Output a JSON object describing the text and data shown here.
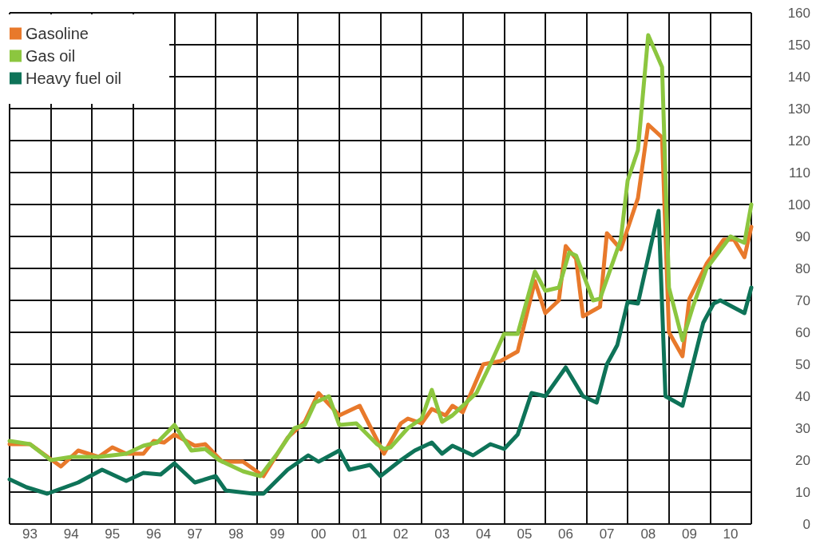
{
  "chart_data": {
    "type": "line",
    "marker": "none",
    "line_style": "solid",
    "grid": true,
    "legend": "top left",
    "xlim": [
      "1993-01",
      "2011-01"
    ],
    "xticks": [
      {
        "value": "1993-01",
        "label": null
      },
      {
        "value": "1993-07",
        "label": "93"
      },
      {
        "value": "1994-01",
        "label": null
      },
      {
        "value": "1994-07",
        "label": "94"
      },
      {
        "value": "1995-01",
        "label": null
      },
      {
        "value": "1995-07",
        "label": "95"
      },
      {
        "value": "1996-01",
        "label": null
      },
      {
        "value": "1996-07",
        "label": "96"
      },
      {
        "value": "1997-01",
        "label": null
      },
      {
        "value": "1997-07",
        "label": "97"
      },
      {
        "value": "1998-01",
        "label": null
      },
      {
        "value": "1998-07",
        "label": "98"
      },
      {
        "value": "1999-01",
        "label": null
      },
      {
        "value": "1999-07",
        "label": "99"
      },
      {
        "value": "2000-01",
        "label": null
      },
      {
        "value": "2000-07",
        "label": "00"
      },
      {
        "value": "2001-01",
        "label": null
      },
      {
        "value": "2001-07",
        "label": "01"
      },
      {
        "value": "2002-01",
        "label": null
      },
      {
        "value": "2002-07",
        "label": "02"
      },
      {
        "value": "2003-01",
        "label": null
      },
      {
        "value": "2003-07",
        "label": "03"
      },
      {
        "value": "2004-01",
        "label": null
      },
      {
        "value": "2004-07",
        "label": "04"
      },
      {
        "value": "2005-01",
        "label": null
      },
      {
        "value": "2005-07",
        "label": "05"
      },
      {
        "value": "2006-01",
        "label": null
      },
      {
        "value": "2006-07",
        "label": "06"
      },
      {
        "value": "2007-01",
        "label": null
      },
      {
        "value": "2007-07",
        "label": "07"
      },
      {
        "value": "2008-01",
        "label": null
      },
      {
        "value": "2008-07",
        "label": "08"
      },
      {
        "value": "2009-01",
        "label": null
      },
      {
        "value": "2009-07",
        "label": "09"
      },
      {
        "value": "2010-01",
        "label": null
      },
      {
        "value": "2010-07",
        "label": "10"
      },
      {
        "value": "2011-01",
        "label": null
      }
    ],
    "ylim": [
      0,
      160
    ],
    "yticks": [
      0,
      10,
      20,
      30,
      40,
      50,
      60,
      70,
      80,
      90,
      100,
      110,
      120,
      130,
      140,
      150,
      160
    ],
    "series": [
      {
        "name": "Gasoline",
        "color": "#e8792b",
        "x": [
          "1993-01",
          "1993-07",
          "1994-04",
          "1994-09",
          "1995-03",
          "1995-07",
          "1995-11",
          "1996-04",
          "1996-07",
          "1996-10",
          "1997-01",
          "1997-07",
          "1997-10",
          "1998-03",
          "1998-09",
          "1999-03",
          "1999-10",
          "2000-03",
          "2000-07",
          "2001-01",
          "2001-07",
          "2002-02",
          "2002-07",
          "2002-09",
          "2003-01",
          "2003-04",
          "2003-08",
          "2003-10",
          "2004-01",
          "2004-07",
          "2004-12",
          "2005-05",
          "2005-10",
          "2006-01",
          "2006-05",
          "2006-07",
          "2006-10",
          "2006-12",
          "2007-05",
          "2007-07",
          "2007-11",
          "2008-04",
          "2008-07",
          "2008-11",
          "2009-01",
          "2009-05",
          "2009-07",
          "2009-12",
          "2010-05",
          "2010-08",
          "2010-11",
          "2011-01"
        ],
        "values": [
          25,
          25,
          18,
          23,
          21,
          24,
          22,
          22,
          26,
          25.5,
          28,
          24.5,
          25,
          19.5,
          19.5,
          15,
          27,
          32,
          41,
          34,
          37,
          22,
          31.5,
          33,
          31.5,
          36,
          34,
          37,
          35,
          50,
          51,
          54,
          76,
          66,
          70,
          87,
          83,
          65,
          68,
          91,
          86,
          102,
          125,
          121,
          60,
          52.5,
          70.5,
          81.5,
          89,
          89,
          83.5,
          93
        ]
      },
      {
        "name": "Gas oil",
        "color": "#8cc63f",
        "x": [
          "1993-01",
          "1993-07",
          "1994-01",
          "1994-07",
          "1995-03",
          "1995-11",
          "1996-04",
          "1996-08",
          "1997-01",
          "1997-06",
          "1997-10",
          "1998-02",
          "1998-09",
          "1999-02",
          "1999-07",
          "1999-12",
          "2000-03",
          "2000-06",
          "2000-10",
          "2001-01",
          "2001-06",
          "2001-12",
          "2002-02",
          "2002-04",
          "2002-09",
          "2003-01",
          "2003-04",
          "2003-07",
          "2003-10",
          "2004-05",
          "2004-09",
          "2005-01",
          "2005-05",
          "2005-10",
          "2006-01",
          "2006-05",
          "2006-08",
          "2006-10",
          "2007-03",
          "2007-05",
          "2007-11",
          "2008-01",
          "2008-04",
          "2008-07",
          "2008-11",
          "2009-01",
          "2009-05",
          "2009-08",
          "2009-12",
          "2010-07",
          "2010-11",
          "2011-01"
        ],
        "values": [
          26,
          25,
          20,
          21,
          21,
          22,
          24.5,
          25.5,
          31,
          23,
          23.5,
          20,
          16.5,
          15,
          22,
          30,
          31,
          38,
          40,
          31,
          31.5,
          25,
          23.5,
          24,
          30,
          33,
          42,
          32,
          34,
          41,
          50,
          59.5,
          59.5,
          79,
          73,
          74,
          85,
          84,
          70,
          70.5,
          89,
          107.5,
          117,
          153,
          143,
          74,
          57.5,
          68,
          80,
          90,
          88,
          100
        ]
      },
      {
        "name": "Heavy fuel oil",
        "color": "#0e7358",
        "x": [
          "1993-01",
          "1993-06",
          "1993-12",
          "1994-09",
          "1995-04",
          "1995-11",
          "1996-04",
          "1996-09",
          "1997-01",
          "1997-07",
          "1998-01",
          "1998-04",
          "1998-12",
          "1999-03",
          "1999-10",
          "2000-04",
          "2000-07",
          "2001-01",
          "2001-04",
          "2001-10",
          "2002-01",
          "2002-07",
          "2002-11",
          "2003-04",
          "2003-07",
          "2003-10",
          "2004-04",
          "2004-09",
          "2005-01",
          "2005-05",
          "2005-09",
          "2006-01",
          "2006-07",
          "2006-12",
          "2007-04",
          "2007-07",
          "2007-10",
          "2008-01",
          "2008-04",
          "2008-10",
          "2008-12",
          "2009-05",
          "2009-11",
          "2010-02",
          "2010-04",
          "2010-11",
          "2011-01"
        ],
        "values": [
          14,
          11.5,
          9.5,
          13,
          17,
          13.5,
          16,
          15.5,
          19,
          13,
          15,
          10.5,
          9.5,
          9.5,
          17,
          21.5,
          19.5,
          23,
          17,
          18.5,
          15,
          20,
          23,
          25.5,
          22,
          24.5,
          21.5,
          25,
          23.5,
          28,
          41,
          40,
          49,
          40,
          38,
          50,
          56,
          69.5,
          69,
          98,
          40,
          37,
          63,
          69,
          70,
          66,
          74
        ]
      }
    ]
  }
}
